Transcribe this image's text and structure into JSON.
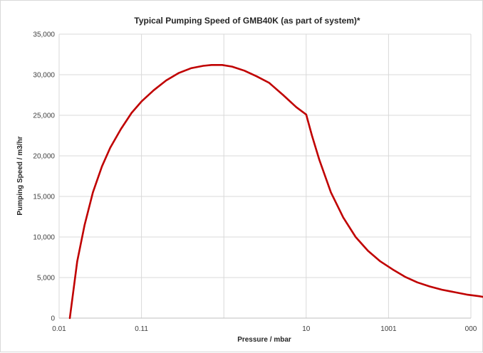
{
  "chart_data": {
    "type": "line",
    "title": "Typical Pumping Speed of GMB40K (as part of system)*",
    "xlabel": "Pressure / mbar",
    "ylabel": "Pumping Speed / m3/hr",
    "x_scale": "log",
    "x_tick_labels": [
      "0.01",
      "0.11",
      "",
      "10",
      "1001",
      "000"
    ],
    "ylim": [
      0,
      35000
    ],
    "y_ticks": [
      0,
      5000,
      10000,
      15000,
      20000,
      25000,
      30000,
      35000
    ],
    "y_tick_labels": [
      "0",
      "5,000",
      "10,000",
      "15,000",
      "20,000",
      "25,000",
      "30,000",
      "35,000"
    ],
    "grid": true,
    "line_color": "#c00000",
    "series": [
      {
        "x_decade": [
          0.13,
          0.22,
          0.31,
          0.41,
          0.52,
          0.62,
          0.75,
          0.88,
          1.0,
          1.15,
          1.3,
          1.45,
          1.6,
          1.75,
          1.85,
          1.98,
          2.1,
          2.25,
          2.4,
          2.55,
          2.72,
          2.88,
          3.0,
          3.07,
          3.16,
          3.3,
          3.45,
          3.6,
          3.75,
          3.9,
          4.05,
          4.2,
          4.35,
          4.5,
          4.65,
          4.8,
          4.95,
          5.1,
          5.25,
          5.4,
          5.55,
          5.7,
          5.85,
          6.0
        ],
        "values": [
          0,
          7000,
          11500,
          15500,
          18700,
          21000,
          23300,
          25300,
          26700,
          28100,
          29300,
          30200,
          30800,
          31100,
          31200,
          31200,
          31000,
          30500,
          29800,
          29000,
          27500,
          26000,
          25100,
          22500,
          19500,
          15500,
          12400,
          10000,
          8300,
          7000,
          6000,
          5100,
          4400,
          3900,
          3500,
          3200,
          2900,
          2700,
          2450,
          2150,
          1900,
          1600,
          1350,
          1250
        ]
      }
    ]
  }
}
